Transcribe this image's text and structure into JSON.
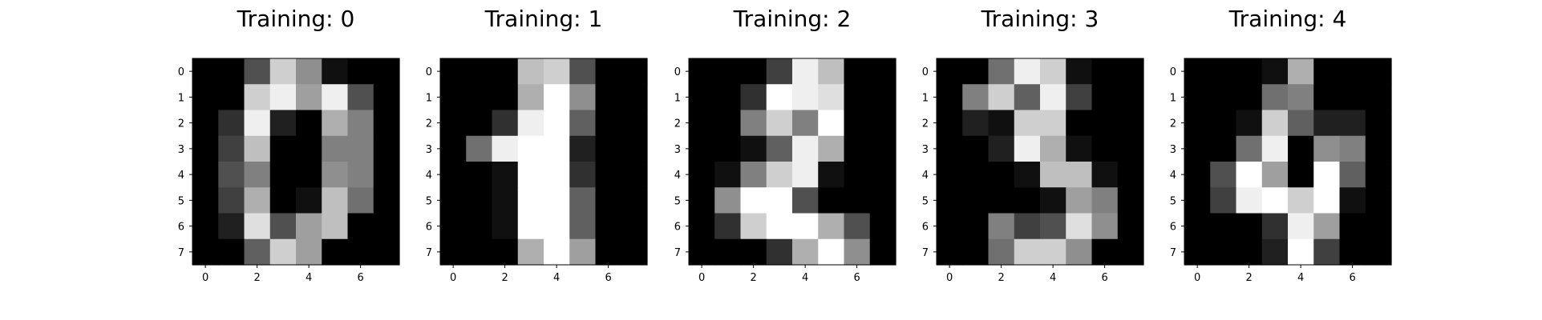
{
  "chart_data": [
    {
      "type": "heatmap",
      "title": "Training: 0",
      "colormap": "gray",
      "vmin": 0,
      "vmax": 16,
      "xticks": [
        "0",
        "2",
        "4",
        "6"
      ],
      "yticks": [
        "0",
        "1",
        "2",
        "3",
        "4",
        "5",
        "6",
        "7"
      ],
      "values": [
        [
          0,
          0,
          5,
          13,
          9,
          1,
          0,
          0
        ],
        [
          0,
          0,
          13,
          15,
          10,
          15,
          5,
          0
        ],
        [
          0,
          3,
          15,
          2,
          0,
          11,
          8,
          0
        ],
        [
          0,
          4,
          12,
          0,
          0,
          8,
          8,
          0
        ],
        [
          0,
          5,
          8,
          0,
          0,
          9,
          8,
          0
        ],
        [
          0,
          4,
          11,
          0,
          1,
          12,
          7,
          0
        ],
        [
          0,
          2,
          14,
          5,
          10,
          12,
          0,
          0
        ],
        [
          0,
          0,
          6,
          13,
          10,
          0,
          0,
          0
        ]
      ]
    },
    {
      "type": "heatmap",
      "title": "Training: 1",
      "colormap": "gray",
      "vmin": 0,
      "vmax": 16,
      "xticks": [
        "0",
        "2",
        "4",
        "6"
      ],
      "yticks": [
        "0",
        "1",
        "2",
        "3",
        "4",
        "5",
        "6",
        "7"
      ],
      "values": [
        [
          0,
          0,
          0,
          12,
          13,
          5,
          0,
          0
        ],
        [
          0,
          0,
          0,
          11,
          16,
          9,
          0,
          0
        ],
        [
          0,
          0,
          3,
          15,
          16,
          6,
          0,
          0
        ],
        [
          0,
          7,
          15,
          16,
          16,
          2,
          0,
          0
        ],
        [
          0,
          0,
          1,
          16,
          16,
          3,
          0,
          0
        ],
        [
          0,
          0,
          1,
          16,
          16,
          6,
          0,
          0
        ],
        [
          0,
          0,
          1,
          16,
          16,
          6,
          0,
          0
        ],
        [
          0,
          0,
          0,
          11,
          16,
          10,
          0,
          0
        ]
      ]
    },
    {
      "type": "heatmap",
      "title": "Training: 2",
      "colormap": "gray",
      "vmin": 0,
      "vmax": 16,
      "xticks": [
        "0",
        "2",
        "4",
        "6"
      ],
      "yticks": [
        "0",
        "1",
        "2",
        "3",
        "4",
        "5",
        "6",
        "7"
      ],
      "values": [
        [
          0,
          0,
          0,
          4,
          15,
          12,
          0,
          0
        ],
        [
          0,
          0,
          3,
          16,
          15,
          14,
          0,
          0
        ],
        [
          0,
          0,
          8,
          13,
          8,
          16,
          0,
          0
        ],
        [
          0,
          0,
          1,
          6,
          15,
          11,
          0,
          0
        ],
        [
          0,
          1,
          8,
          13,
          15,
          1,
          0,
          0
        ],
        [
          0,
          9,
          16,
          16,
          5,
          0,
          0,
          0
        ],
        [
          0,
          3,
          13,
          16,
          16,
          11,
          5,
          0
        ],
        [
          0,
          0,
          0,
          3,
          11,
          16,
          9,
          0
        ]
      ]
    },
    {
      "type": "heatmap",
      "title": "Training: 3",
      "colormap": "gray",
      "vmin": 0,
      "vmax": 16,
      "xticks": [
        "0",
        "2",
        "4",
        "6"
      ],
      "yticks": [
        "0",
        "1",
        "2",
        "3",
        "4",
        "5",
        "6",
        "7"
      ],
      "values": [
        [
          0,
          0,
          7,
          15,
          13,
          1,
          0,
          0
        ],
        [
          0,
          8,
          13,
          6,
          15,
          4,
          0,
          0
        ],
        [
          0,
          2,
          1,
          13,
          13,
          0,
          0,
          0
        ],
        [
          0,
          0,
          2,
          15,
          11,
          1,
          0,
          0
        ],
        [
          0,
          0,
          0,
          1,
          12,
          12,
          1,
          0
        ],
        [
          0,
          0,
          0,
          0,
          1,
          10,
          8,
          0
        ],
        [
          0,
          0,
          8,
          4,
          5,
          14,
          9,
          0
        ],
        [
          0,
          0,
          7,
          13,
          13,
          9,
          0,
          0
        ]
      ]
    },
    {
      "type": "heatmap",
      "title": "Training: 4",
      "colormap": "gray",
      "vmin": 0,
      "vmax": 16,
      "xticks": [
        "0",
        "2",
        "4",
        "6"
      ],
      "yticks": [
        "0",
        "1",
        "2",
        "3",
        "4",
        "5",
        "6",
        "7"
      ],
      "values": [
        [
          0,
          0,
          0,
          1,
          11,
          0,
          0,
          0
        ],
        [
          0,
          0,
          0,
          7,
          8,
          0,
          0,
          0
        ],
        [
          0,
          0,
          1,
          13,
          6,
          2,
          2,
          0
        ],
        [
          0,
          0,
          7,
          15,
          0,
          9,
          8,
          0
        ],
        [
          0,
          5,
          16,
          10,
          0,
          16,
          6,
          0
        ],
        [
          0,
          4,
          15,
          16,
          13,
          16,
          1,
          0
        ],
        [
          0,
          0,
          0,
          3,
          15,
          10,
          0,
          0
        ],
        [
          0,
          0,
          0,
          2,
          16,
          4,
          0,
          0
        ]
      ]
    }
  ]
}
